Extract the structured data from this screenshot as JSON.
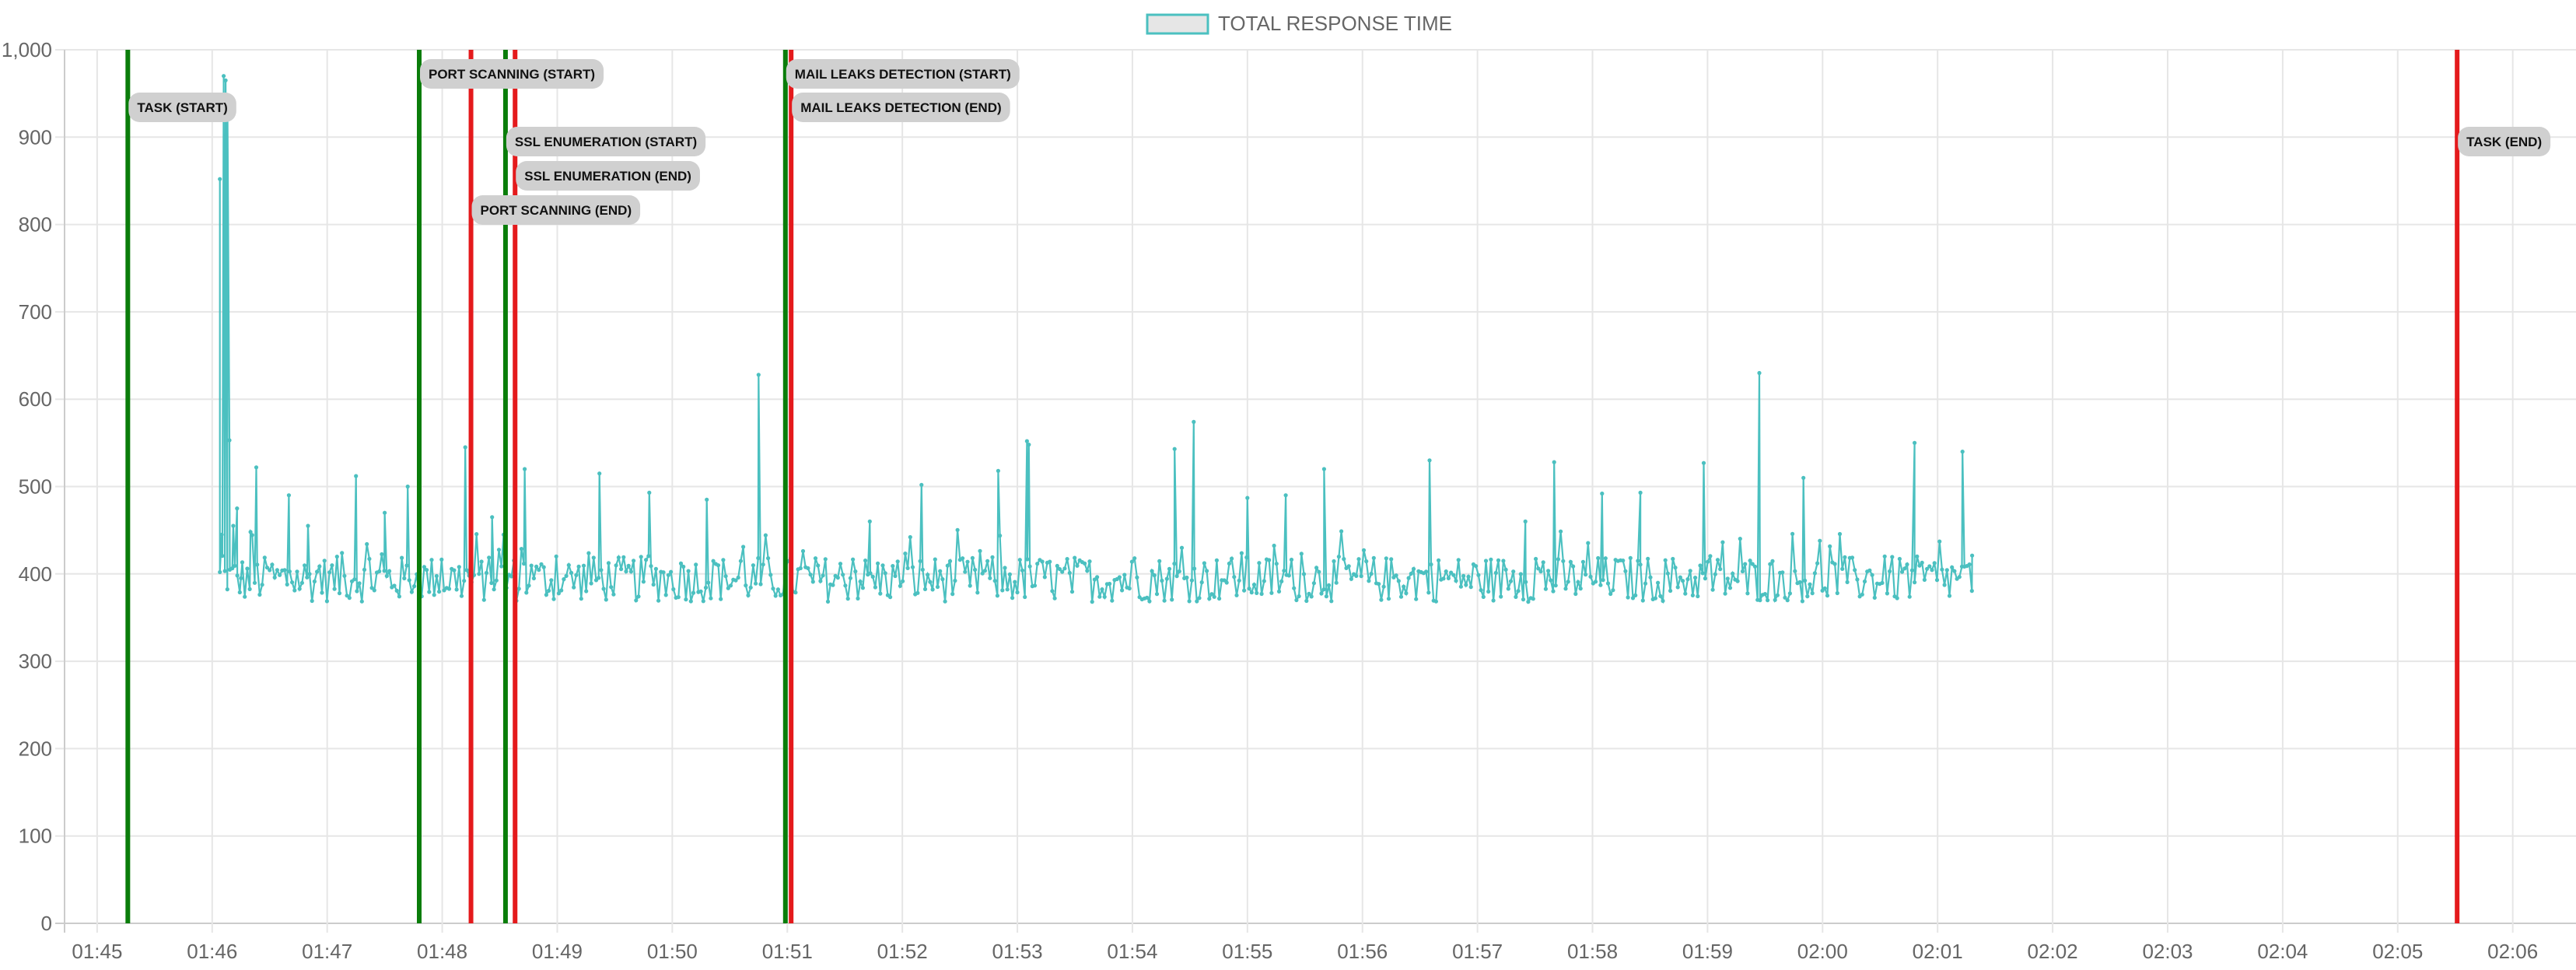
{
  "chart_data": {
    "type": "line",
    "legend": {
      "label": "TOTAL RESPONSE TIME",
      "position": "top-center"
    },
    "colors": {
      "series": "#4bc0c0",
      "start_marker": "#0a7d0a",
      "end_marker": "#e41a1c",
      "annotation_bg": "#d0d0d0",
      "grid": "#e6e6e6",
      "axis_text": "#666666"
    },
    "x_axis": {
      "type": "time",
      "range": [
        "01:44:43",
        "02:06:33"
      ],
      "tick_labels": [
        "01:45",
        "01:46",
        "01:47",
        "01:48",
        "01:49",
        "01:50",
        "01:51",
        "01:52",
        "01:53",
        "01:54",
        "01:55",
        "01:56",
        "01:57",
        "01:58",
        "01:59",
        "02:00",
        "02:01",
        "02:02",
        "02:03",
        "02:04",
        "02:05",
        "02:06"
      ],
      "grid": true
    },
    "y_axis": {
      "range": [
        0,
        1000
      ],
      "tick_labels": [
        "0",
        "100",
        "200",
        "300",
        "400",
        "500",
        "600",
        "700",
        "800",
        "900",
        "1,000"
      ],
      "grid": true
    },
    "markers": [
      {
        "label": "TASK (START)",
        "kind": "start",
        "time": "01:45:16"
      },
      {
        "label": "PORT SCANNING (START)",
        "kind": "start",
        "time": "01:47:48"
      },
      {
        "label": "PORT SCANNING (END)",
        "kind": "end",
        "time": "01:48:15"
      },
      {
        "label": "SSL ENUMERATION (START)",
        "kind": "start",
        "time": "01:48:33"
      },
      {
        "label": "SSL ENUMERATION (END)",
        "kind": "end",
        "time": "01:48:38"
      },
      {
        "label": "MAIL LEAKS DETECTION (START)",
        "kind": "start",
        "time": "01:50:59"
      },
      {
        "label": "MAIL LEAKS DETECTION (END)",
        "kind": "end",
        "time": "01:51:02"
      },
      {
        "label": "TASK (END)",
        "kind": "end",
        "time": "02:05:31"
      }
    ],
    "series": [
      {
        "name": "TOTAL RESPONSE TIME",
        "x_start": "01:46:04",
        "x_end": "02:01:18",
        "keypoints": [
          [
            "01:46:04",
            852
          ],
          [
            "01:46:05",
            445
          ],
          [
            "01:46:06",
            970
          ],
          [
            "01:46:07",
            965
          ],
          [
            "01:46:08",
            930
          ],
          [
            "01:46:09",
            553
          ],
          [
            "01:46:11",
            455
          ],
          [
            "01:46:13",
            475
          ],
          [
            "01:46:15",
            395
          ],
          [
            "01:46:20",
            448
          ],
          [
            "01:46:23",
            522
          ],
          [
            "01:46:40",
            490
          ],
          [
            "01:46:50",
            455
          ],
          [
            "01:47:15",
            512
          ],
          [
            "01:47:30",
            470
          ],
          [
            "01:47:42",
            500
          ],
          [
            "01:48:12",
            545
          ],
          [
            "01:48:15",
            483
          ],
          [
            "01:48:26",
            465
          ],
          [
            "01:48:32",
            445
          ],
          [
            "01:48:43",
            520
          ],
          [
            "01:49:22",
            515
          ],
          [
            "01:49:48",
            493
          ],
          [
            "01:50:18",
            485
          ],
          [
            "01:50:45",
            628
          ],
          [
            "01:51:43",
            460
          ],
          [
            "01:52:10",
            502
          ],
          [
            "01:52:50",
            518
          ],
          [
            "01:53:05",
            552
          ],
          [
            "01:53:06",
            548
          ],
          [
            "01:54:22",
            543
          ],
          [
            "01:54:32",
            574
          ],
          [
            "01:55:00",
            487
          ],
          [
            "01:55:20",
            490
          ],
          [
            "01:55:40",
            520
          ],
          [
            "01:56:35",
            530
          ],
          [
            "01:57:25",
            460
          ],
          [
            "01:57:40",
            528
          ],
          [
            "01:58:05",
            492
          ],
          [
            "01:58:25",
            493
          ],
          [
            "01:58:58",
            527
          ],
          [
            "01:59:27",
            630
          ],
          [
            "01:59:50",
            510
          ],
          [
            "02:00:48",
            550
          ],
          [
            "02:01:13",
            540
          ],
          [
            "02:01:18",
            421
          ]
        ],
        "baseline_range": [
          368,
          420
        ]
      }
    ]
  }
}
